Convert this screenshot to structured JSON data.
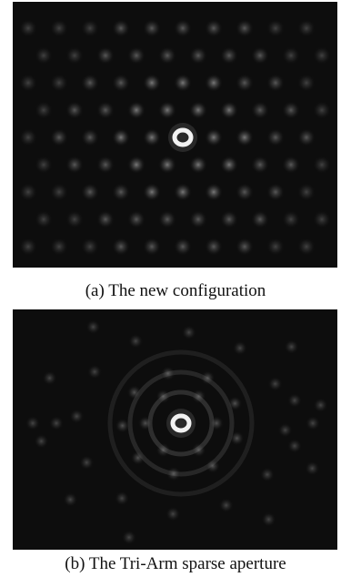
{
  "figure": {
    "panel_a": {
      "caption": "(a) The new configuration"
    },
    "panel_b": {
      "caption": "(b) The Tri-Arm sparse aperture"
    }
  }
}
